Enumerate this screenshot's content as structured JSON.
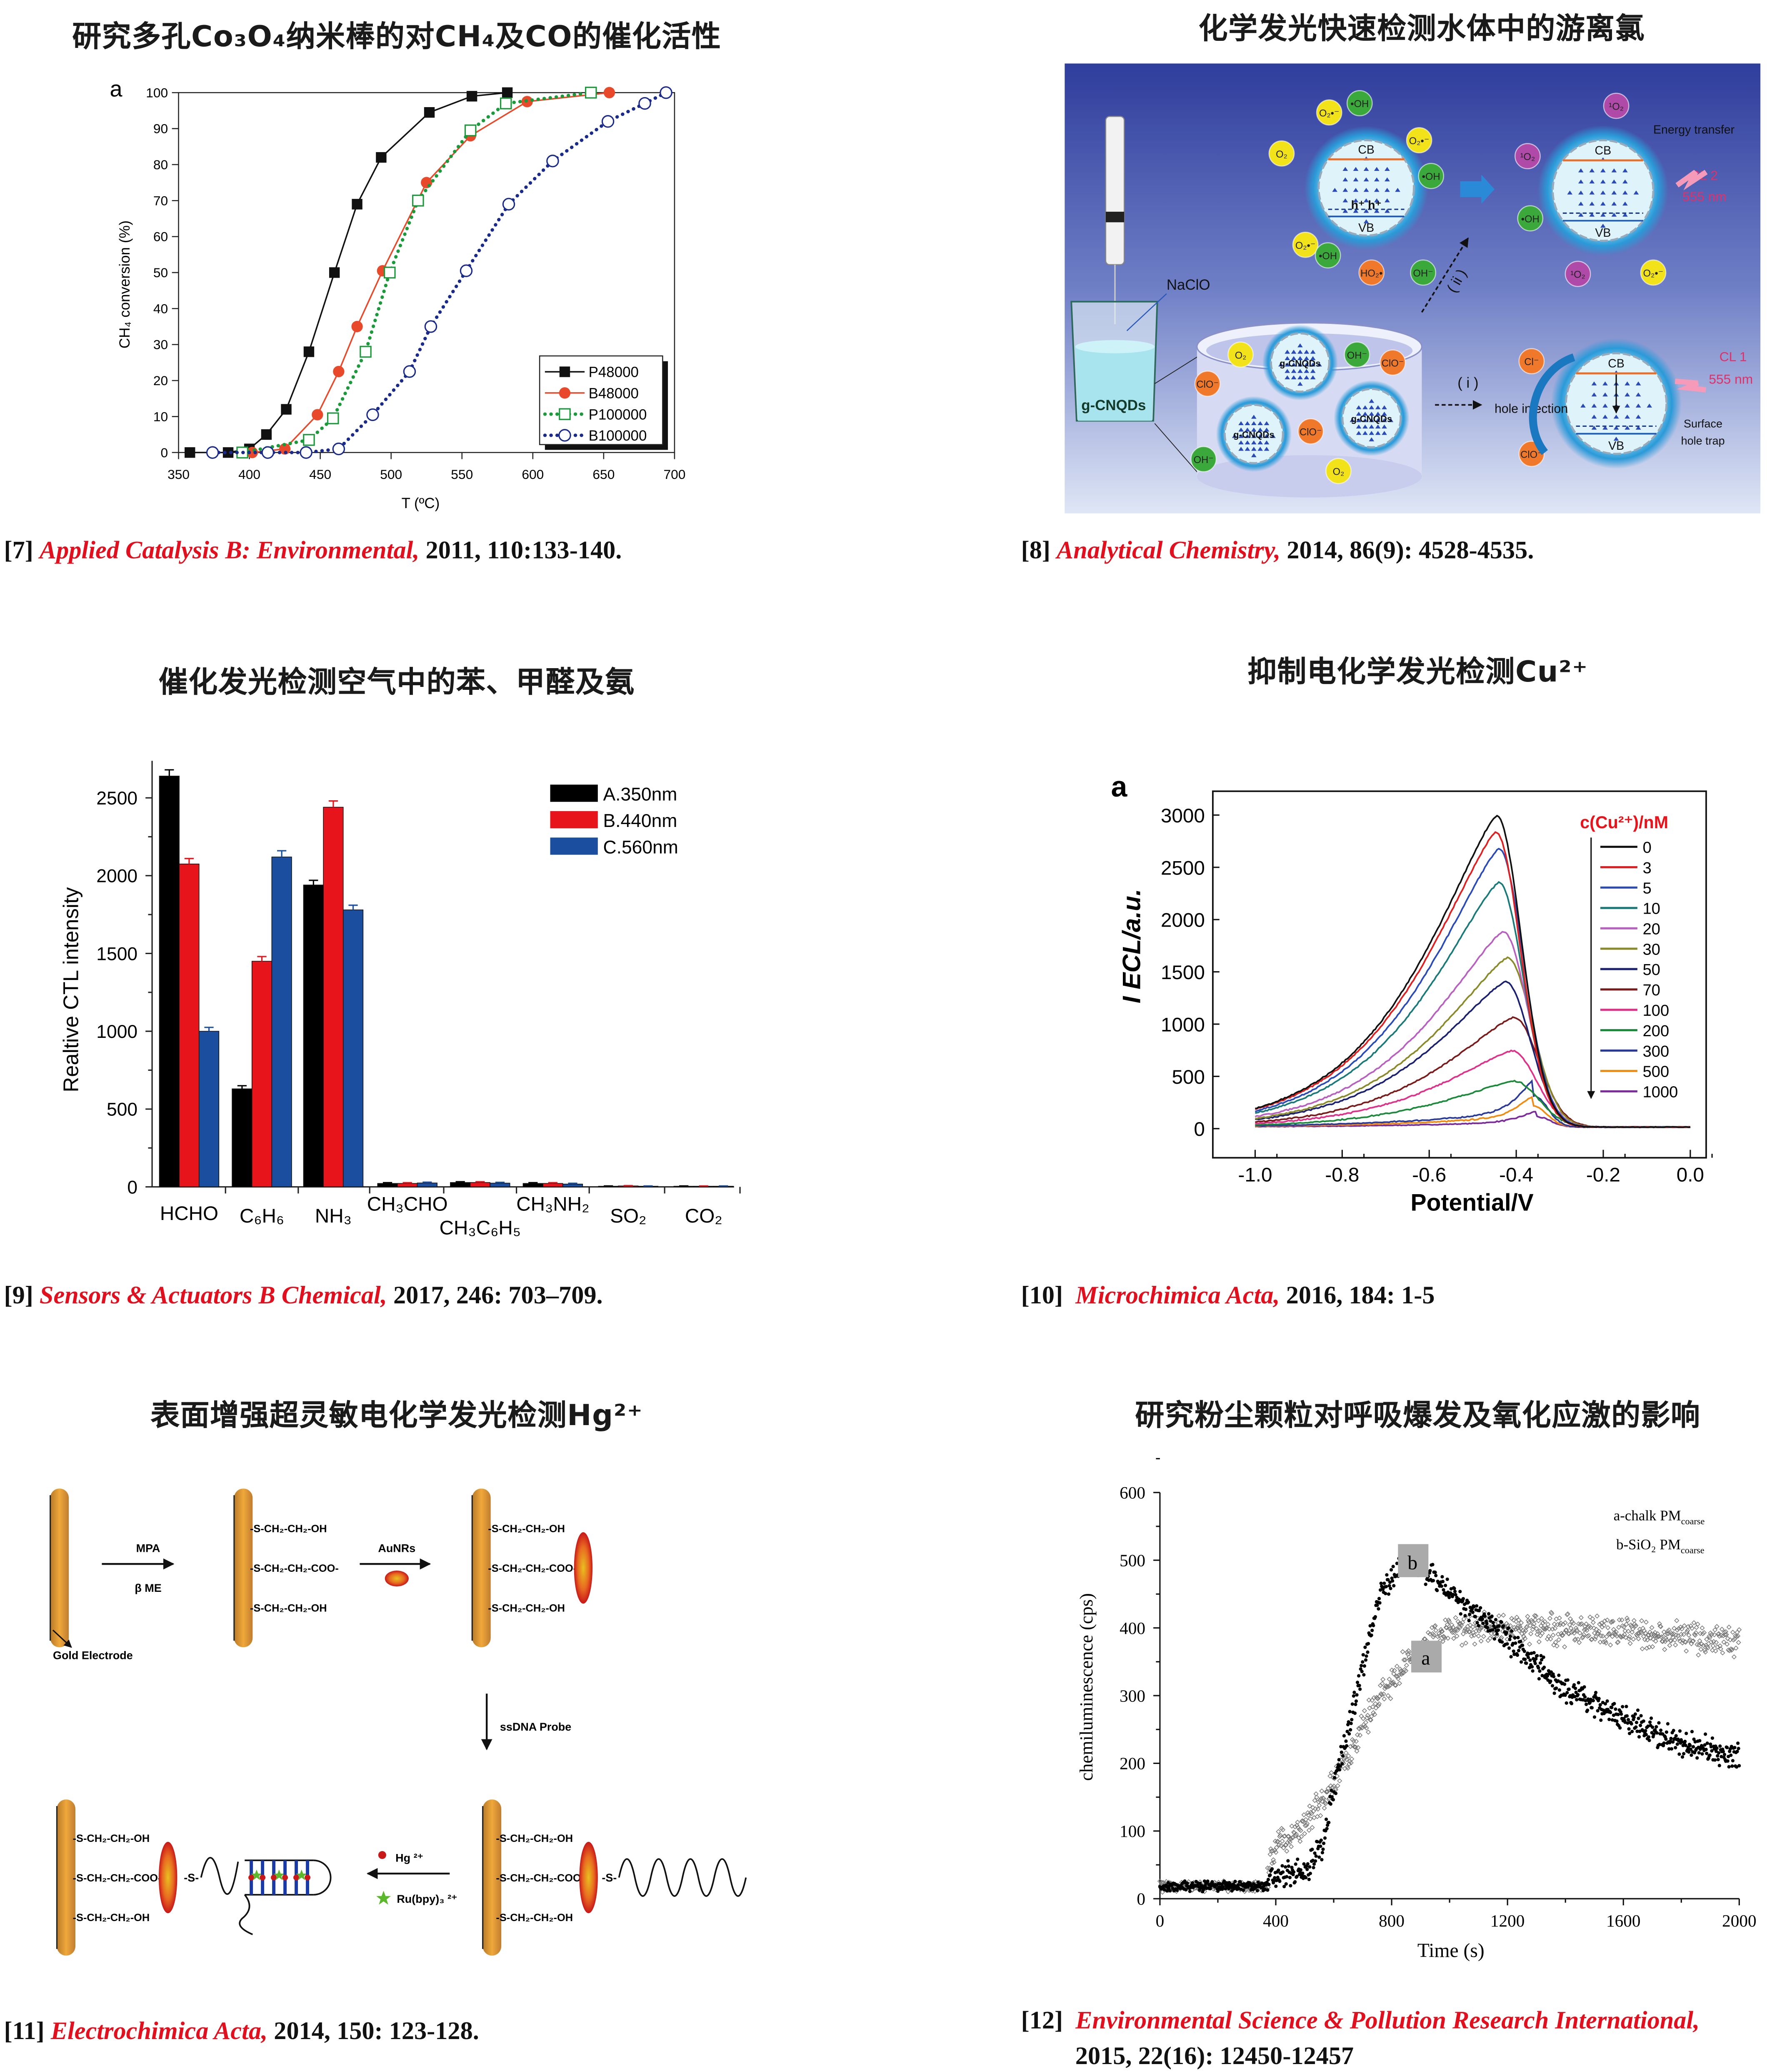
{
  "panels": [
    {
      "title": "研究多孔Co₃O₄纳米棒的对CH₄及CO的催化活性",
      "citation": {
        "ref": "[7]",
        "journal": "Applied Catalysis B: Environmental,",
        "details": " 2011, 110:133-140."
      }
    },
    {
      "title": "化学发光快速检测水体中的游离氯",
      "citation": {
        "ref": "[8]",
        "journal": "Analytical Chemistry,",
        "details": " 2014, 86(9): 4528-4535."
      }
    },
    {
      "title": "催化发光检测空气中的苯、甲醛及氨",
      "citation": {
        "ref": "[9]",
        "journal": "Sensors & Actuators B Chemical,",
        "details": " 2017, 246: 703–709."
      }
    },
    {
      "title": "抑制电化学发光检测Cu²⁺",
      "citation": {
        "ref": "[10]",
        "journal": "Microchimica Acta,",
        "details": " 2016, 184: 1-5"
      }
    },
    {
      "title": "表面增强超灵敏电化学发光检测Hg²⁺",
      "citation": {
        "ref": "[11]",
        "journal": "Electrochimica Acta,",
        "details": " 2014, 150: 123-128."
      }
    },
    {
      "title": "研究粉尘颗粒对呼吸爆发及氧化应激的影响",
      "citation": {
        "ref": "[12]",
        "journal": "Environmental Science & Pollution Research International,",
        "details": "2015, 22(16): 12450-12457"
      }
    }
  ],
  "fig8": {
    "naclo": "NaClO",
    "beaker_label": "g-CNQDs",
    "dot_label": "g-CNQDs",
    "path_i": "( i )",
    "path_ii": "( ii )",
    "hole_injection": "hole injection",
    "energy_transfer": "Energy transfer",
    "cl2": "CL 2",
    "cl1": "CL 1",
    "wavelength": "555 nm",
    "surface_hole_trap_1": "Surface",
    "surface_hole_trap_2": "hole trap",
    "cb": "CB",
    "vb": "VB",
    "holes": "h⁺  h⁺",
    "species": {
      "o2": "O₂",
      "clo": "ClO⁻",
      "oh_minus": "OH⁻",
      "oh_radical": "•OH",
      "superoxide": "O₂•⁻",
      "ho2": "HO₂•",
      "singlet_o2": "¹O₂",
      "cl": "Cl⁻"
    }
  },
  "fig11": {
    "mpa": "MPA",
    "beta_me": "β ME",
    "aunrs": "AuNRs",
    "gold_electrode": "Gold Electrode",
    "ssdna_probe": "ssDNA Probe",
    "hg": "Hg ²⁺",
    "ru": "Ru(bpy)₃ ²⁺",
    "oh_chain": "-S-CH₂-CH₂-OH",
    "coo_chain": "-S-CH₂-CH₂-COO-",
    "s_link": "-S-"
  },
  "chart_data": [
    {
      "type": "line",
      "panel_letter": "a",
      "xlabel": "T (ºC)",
      "ylabel": "CH₄ conversion (%)",
      "xlim": [
        350,
        700
      ],
      "ylim": [
        0,
        100
      ],
      "xticks": [
        350,
        400,
        450,
        500,
        550,
        600,
        650,
        700
      ],
      "yticks": [
        0,
        10,
        20,
        30,
        40,
        50,
        60,
        70,
        80,
        90,
        100
      ],
      "legend_position": "bottom-right",
      "series": [
        {
          "name": "P48000",
          "color": "#111111",
          "marker": "filled-square",
          "line": "solid",
          "x": [
            358,
            385,
            400,
            412,
            426,
            442,
            460,
            476,
            493,
            527,
            557,
            582
          ],
          "y": [
            0,
            0,
            1,
            5,
            12,
            28,
            50,
            69,
            82,
            94.5,
            99,
            100
          ]
        },
        {
          "name": "B48000",
          "color": "#e8492a",
          "marker": "filled-circle",
          "line": "solid",
          "x": [
            402,
            425,
            448,
            463,
            476,
            494,
            525,
            556,
            596,
            654
          ],
          "y": [
            0,
            1,
            10.5,
            22.5,
            35,
            50.5,
            75,
            88,
            97.5,
            100
          ]
        },
        {
          "name": "P100000",
          "color": "#1a9a3a",
          "marker": "open-square",
          "line": "dotted",
          "x": [
            395,
            442,
            459,
            482,
            499,
            519,
            556,
            581,
            641
          ],
          "y": [
            0,
            3.5,
            9.5,
            28,
            50,
            70,
            89.5,
            97,
            100
          ]
        },
        {
          "name": "B100000",
          "color": "#1a2a8a",
          "marker": "open-circle",
          "line": "dotted",
          "x": [
            374,
            413,
            440,
            463,
            487,
            513,
            528,
            553,
            583,
            614,
            653,
            679,
            694
          ],
          "y": [
            0,
            0,
            0,
            1,
            10.5,
            22.5,
            35,
            50.5,
            69,
            81,
            92,
            97,
            100
          ]
        }
      ]
    },
    {
      "type": "bar",
      "ylabel": "Realtive CTL intensity",
      "ylim": [
        0,
        2750
      ],
      "yticks": [
        0,
        500,
        1000,
        1500,
        2000,
        2500
      ],
      "categories": [
        "HCHO",
        "C₆H₆",
        "NH₃",
        "CH₃CHO",
        "CH₃C₆H₅",
        "CH₃NH₂",
        "SO₂",
        "CO₂"
      ],
      "legend_position": "top-right",
      "series": [
        {
          "name": "A.350nm",
          "color": "#000000",
          "values": [
            2640,
            630,
            1940,
            22,
            28,
            22,
            4,
            4
          ],
          "errors": [
            40,
            20,
            30,
            5,
            5,
            5,
            2,
            2
          ]
        },
        {
          "name": "B.440nm",
          "color": "#e8141c",
          "values": [
            2075,
            1450,
            2440,
            22,
            28,
            22,
            6,
            4
          ],
          "errors": [
            35,
            30,
            40,
            5,
            5,
            5,
            2,
            2
          ]
        },
        {
          "name": "C.560nm",
          "color": "#1c4ea0",
          "values": [
            1000,
            2120,
            1780,
            25,
            24,
            18,
            4,
            4
          ],
          "errors": [
            25,
            40,
            30,
            5,
            5,
            5,
            2,
            2
          ]
        }
      ]
    },
    {
      "type": "line",
      "panel_letter": "a",
      "xlabel": "Potential/V",
      "ylabel": "I_ECL/a.u.",
      "xlim": [
        -1.0,
        0.0
      ],
      "ylim": [
        -200,
        3250
      ],
      "xticks": [
        "-1.0",
        "-0.8",
        "-0.6",
        "-0.4",
        "-0.2",
        "0.0"
      ],
      "yticks": [
        0,
        500,
        1000,
        1500,
        2000,
        2500,
        3000
      ],
      "legend_title": "c(Cu²⁺)/nM",
      "legend_position": "top-right",
      "series": [
        {
          "name": "0",
          "color": "#111111",
          "peak": 2980,
          "peak_potential": -0.445
        },
        {
          "name": "3",
          "color": "#e02020",
          "peak": 2820,
          "peak_potential": -0.447
        },
        {
          "name": "5",
          "color": "#2a4ab8",
          "peak": 2660,
          "peak_potential": -0.44
        },
        {
          "name": "10",
          "color": "#1a7a7a",
          "peak": 2340,
          "peak_potential": -0.44
        },
        {
          "name": "20",
          "color": "#b860c0",
          "peak": 1870,
          "peak_potential": -0.43
        },
        {
          "name": "30",
          "color": "#8a8a2a",
          "peak": 1620,
          "peak_potential": -0.42
        },
        {
          "name": "50",
          "color": "#1a2070",
          "peak": 1390,
          "peak_potential": -0.425
        },
        {
          "name": "70",
          "color": "#7a1a1a",
          "peak": 1050,
          "peak_potential": -0.405
        },
        {
          "name": "100",
          "color": "#e0308a",
          "peak": 730,
          "peak_potential": -0.41
        },
        {
          "name": "200",
          "color": "#1a8a3a",
          "peak": 440,
          "peak_potential": -0.405
        },
        {
          "name": "300",
          "color": "#2a3a9a",
          "peak": 300,
          "peak_potential": -0.36
        },
        {
          "name": "500",
          "color": "#f08a10",
          "peak": 200,
          "peak_potential": -0.36
        },
        {
          "name": "1000",
          "color": "#7a2a9a",
          "peak": 100,
          "peak_potential": -0.355
        }
      ]
    },
    {
      "type": "scatter",
      "xlabel": "Time (s)",
      "ylabel": "chemiluminescence (cps)",
      "xlim": [
        0,
        2000
      ],
      "ylim": [
        0,
        600
      ],
      "xticks": [
        0,
        400,
        800,
        1200,
        1600,
        2000
      ],
      "yticks": [
        0,
        100,
        200,
        300,
        400,
        500,
        600
      ],
      "legend_position": "top-right",
      "legend": [
        "a-chalk PMcoarse",
        "b-SiO₂ PMcoarse"
      ],
      "legend_text": {
        "a_main": "a-chalk PM",
        "a_sub": "coarse",
        "b_main": "b-SiO₂ PM",
        "b_sub": "coarse"
      },
      "series": [
        {
          "name": "a",
          "marker": "open-diamond",
          "color": "#777777",
          "x": [
            0,
            370,
            385,
            500,
            600,
            700,
            800,
            900,
            1000,
            1200,
            1600,
            2000
          ],
          "y": [
            18,
            18,
            70,
            110,
            170,
            255,
            320,
            380,
            395,
            400,
            395,
            380
          ]
        },
        {
          "name": "b",
          "marker": "filled-dot",
          "color": "#000000",
          "x": [
            0,
            370,
            385,
            500,
            560,
            620,
            700,
            760,
            850,
            950,
            1100,
            1200,
            1400,
            1600,
            1800,
            2000
          ],
          "y": [
            18,
            18,
            35,
            40,
            80,
            200,
            340,
            450,
            505,
            470,
            420,
            385,
            310,
            265,
            230,
            210
          ]
        }
      ],
      "annotations": [
        "a",
        "b"
      ]
    }
  ]
}
